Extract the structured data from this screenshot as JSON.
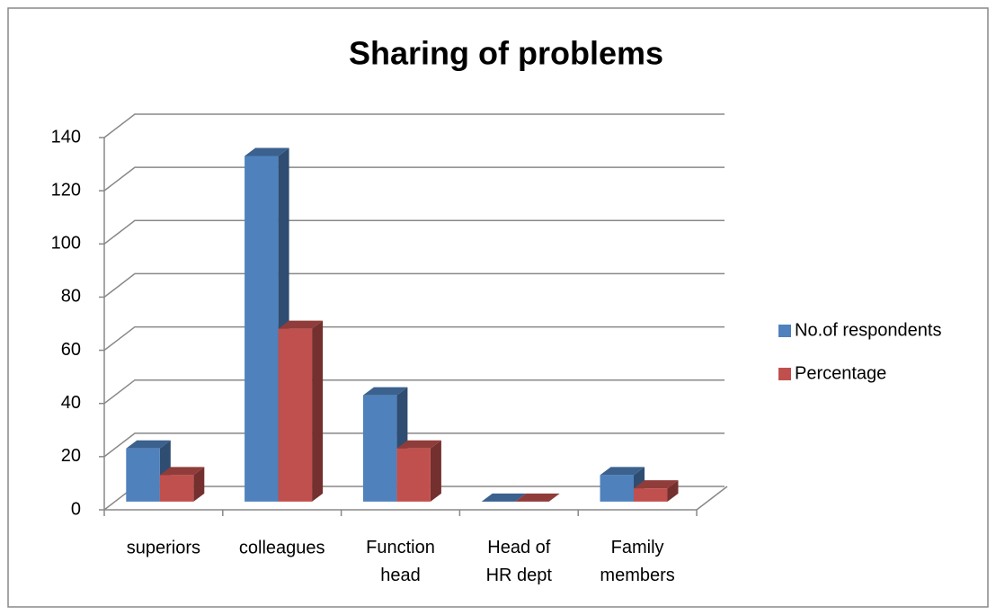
{
  "chart_data": {
    "type": "bar3d",
    "title": "Sharing of problems",
    "categories": [
      "superiors",
      "colleagues",
      "Function head",
      "Head of HR dept",
      "Family members"
    ],
    "series": [
      {
        "name": "No.of respondents",
        "color": "#4f81bd",
        "values": [
          20,
          130,
          40,
          0,
          10
        ]
      },
      {
        "name": "Percentage",
        "color": "#c0504d",
        "values": [
          10,
          65,
          20,
          0,
          5
        ]
      }
    ],
    "ylim": [
      0,
      140
    ],
    "yticks": [
      0,
      20,
      40,
      60,
      80,
      100,
      120,
      140
    ],
    "grid": true,
    "legend": "right"
  }
}
